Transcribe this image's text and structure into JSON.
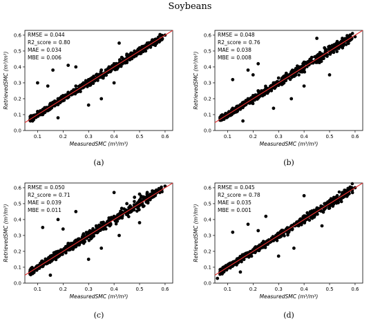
{
  "figure_title": "Soybeans",
  "chart_data": [
    {
      "type": "scatter",
      "panel_label": "(a)",
      "xlabel": "MeasuredSMC (m³/m³)",
      "ylabel": "RetrievedSMC (m³/m³)",
      "xlim": [
        0.05,
        0.63
      ],
      "ylim": [
        0.0,
        0.63
      ],
      "xticks": [
        "0.1",
        "0.2",
        "0.3",
        "0.4",
        "0.5",
        "0.6"
      ],
      "yticks": [
        "0.0",
        "0.1",
        "0.2",
        "0.3",
        "0.4",
        "0.5",
        "0.6"
      ],
      "stats": [
        "RMSE = 0.044",
        "R2_score = 0.80",
        "MAE = 0.034",
        "MBE = 0.006"
      ],
      "line": "1:1",
      "colors": {
        "points": "#000000",
        "line": "#e03030"
      },
      "sample_points": [
        [
          0.08,
          0.06
        ],
        [
          0.1,
          0.12
        ],
        [
          0.12,
          0.1
        ],
        [
          0.15,
          0.17
        ],
        [
          0.18,
          0.2
        ],
        [
          0.2,
          0.22
        ],
        [
          0.22,
          0.24
        ],
        [
          0.25,
          0.28
        ],
        [
          0.28,
          0.3
        ],
        [
          0.3,
          0.32
        ],
        [
          0.33,
          0.35
        ],
        [
          0.35,
          0.38
        ],
        [
          0.38,
          0.4
        ],
        [
          0.4,
          0.42
        ],
        [
          0.43,
          0.46
        ],
        [
          0.45,
          0.48
        ],
        [
          0.48,
          0.5
        ],
        [
          0.5,
          0.52
        ],
        [
          0.53,
          0.55
        ],
        [
          0.55,
          0.57
        ],
        [
          0.58,
          0.6
        ],
        [
          0.6,
          0.6
        ],
        [
          0.1,
          0.3
        ],
        [
          0.16,
          0.38
        ],
        [
          0.22,
          0.41
        ],
        [
          0.25,
          0.4
        ],
        [
          0.3,
          0.16
        ],
        [
          0.35,
          0.2
        ],
        [
          0.4,
          0.3
        ],
        [
          0.42,
          0.55
        ],
        [
          0.18,
          0.08
        ],
        [
          0.14,
          0.28
        ]
      ],
      "grid": false
    },
    {
      "type": "scatter",
      "panel_label": "(b)",
      "xlabel": "MeasuredSMC (m³/m³)",
      "ylabel": "RetrievedSMC (m³/m³)",
      "xlim": [
        0.05,
        0.63
      ],
      "ylim": [
        0.0,
        0.63
      ],
      "xticks": [
        "0.1",
        "0.2",
        "0.3",
        "0.4",
        "0.5",
        "0.6"
      ],
      "yticks": [
        "0.0",
        "0.1",
        "0.2",
        "0.3",
        "0.4",
        "0.5",
        "0.6"
      ],
      "stats": [
        "RMSE = 0.048",
        "R2_score = 0.76",
        "MAE = 0.038",
        "MBE = 0.008"
      ],
      "line": "1:1",
      "colors": {
        "points": "#000000",
        "line": "#e03030"
      },
      "sample_points": [
        [
          0.08,
          0.07
        ],
        [
          0.1,
          0.1
        ],
        [
          0.12,
          0.14
        ],
        [
          0.15,
          0.16
        ],
        [
          0.18,
          0.2
        ],
        [
          0.2,
          0.22
        ],
        [
          0.22,
          0.25
        ],
        [
          0.25,
          0.27
        ],
        [
          0.28,
          0.3
        ],
        [
          0.3,
          0.33
        ],
        [
          0.33,
          0.36
        ],
        [
          0.35,
          0.37
        ],
        [
          0.38,
          0.4
        ],
        [
          0.4,
          0.43
        ],
        [
          0.43,
          0.46
        ],
        [
          0.45,
          0.47
        ],
        [
          0.48,
          0.52
        ],
        [
          0.5,
          0.53
        ],
        [
          0.53,
          0.56
        ],
        [
          0.55,
          0.58
        ],
        [
          0.58,
          0.6
        ],
        [
          0.6,
          0.59
        ],
        [
          0.12,
          0.32
        ],
        [
          0.18,
          0.38
        ],
        [
          0.22,
          0.42
        ],
        [
          0.28,
          0.14
        ],
        [
          0.35,
          0.2
        ],
        [
          0.4,
          0.28
        ],
        [
          0.45,
          0.58
        ],
        [
          0.16,
          0.06
        ],
        [
          0.2,
          0.35
        ],
        [
          0.5,
          0.35
        ]
      ],
      "grid": false
    },
    {
      "type": "scatter",
      "panel_label": "(c)",
      "xlabel": "MeasuredSMC (m³/m³)",
      "ylabel": "RetrievedSMC (m³/m³)",
      "xlim": [
        0.05,
        0.63
      ],
      "ylim": [
        0.0,
        0.63
      ],
      "xticks": [
        "0.1",
        "0.2",
        "0.3",
        "0.4",
        "0.5",
        "0.6"
      ],
      "yticks": [
        "0.0",
        "0.1",
        "0.2",
        "0.3",
        "0.4",
        "0.5",
        "0.6"
      ],
      "stats": [
        "RMSE = 0.050",
        "R2_score = 0.71",
        "MAE = 0.039",
        "MBE = 0.011"
      ],
      "line": "1:1",
      "colors": {
        "points": "#000000",
        "line": "#e03030"
      },
      "sample_points": [
        [
          0.08,
          0.06
        ],
        [
          0.1,
          0.1
        ],
        [
          0.12,
          0.13
        ],
        [
          0.15,
          0.17
        ],
        [
          0.18,
          0.2
        ],
        [
          0.2,
          0.21
        ],
        [
          0.22,
          0.25
        ],
        [
          0.25,
          0.27
        ],
        [
          0.28,
          0.31
        ],
        [
          0.3,
          0.32
        ],
        [
          0.33,
          0.36
        ],
        [
          0.35,
          0.38
        ],
        [
          0.38,
          0.41
        ],
        [
          0.4,
          0.42
        ],
        [
          0.43,
          0.47
        ],
        [
          0.45,
          0.5
        ],
        [
          0.48,
          0.54
        ],
        [
          0.5,
          0.56
        ],
        [
          0.53,
          0.57
        ],
        [
          0.55,
          0.58
        ],
        [
          0.58,
          0.59
        ],
        [
          0.6,
          0.61
        ],
        [
          0.12,
          0.35
        ],
        [
          0.18,
          0.4
        ],
        [
          0.25,
          0.45
        ],
        [
          0.3,
          0.15
        ],
        [
          0.35,
          0.22
        ],
        [
          0.42,
          0.3
        ],
        [
          0.4,
          0.57
        ],
        [
          0.15,
          0.05
        ],
        [
          0.2,
          0.34
        ],
        [
          0.5,
          0.38
        ]
      ],
      "grid": false
    },
    {
      "type": "scatter",
      "panel_label": "(d)",
      "xlabel": "MeasuredSMC (m³/m³)",
      "ylabel": "RetrievedSMC (m³/m³)",
      "xlim": [
        0.05,
        0.63
      ],
      "ylim": [
        0.0,
        0.63
      ],
      "xticks": [
        "0.1",
        "0.2",
        "0.3",
        "0.4",
        "0.5",
        "0.6"
      ],
      "yticks": [
        "0.0",
        "0.1",
        "0.2",
        "0.3",
        "0.4",
        "0.5",
        "0.6"
      ],
      "stats": [
        "RMSE = 0.045",
        "R2_score = 0.78",
        "MAE = 0.035",
        "MBE = 0.001"
      ],
      "line": "1:1",
      "colors": {
        "points": "#000000",
        "line": "#e03030"
      },
      "sample_points": [
        [
          0.06,
          0.03
        ],
        [
          0.08,
          0.08
        ],
        [
          0.1,
          0.1
        ],
        [
          0.12,
          0.13
        ],
        [
          0.15,
          0.16
        ],
        [
          0.18,
          0.19
        ],
        [
          0.2,
          0.21
        ],
        [
          0.22,
          0.23
        ],
        [
          0.25,
          0.26
        ],
        [
          0.28,
          0.29
        ],
        [
          0.3,
          0.31
        ],
        [
          0.33,
          0.34
        ],
        [
          0.35,
          0.36
        ],
        [
          0.38,
          0.39
        ],
        [
          0.4,
          0.41
        ],
        [
          0.43,
          0.44
        ],
        [
          0.45,
          0.46
        ],
        [
          0.48,
          0.5
        ],
        [
          0.5,
          0.51
        ],
        [
          0.53,
          0.55
        ],
        [
          0.55,
          0.57
        ],
        [
          0.58,
          0.59
        ],
        [
          0.6,
          0.6
        ],
        [
          0.12,
          0.32
        ],
        [
          0.18,
          0.37
        ],
        [
          0.25,
          0.42
        ],
        [
          0.3,
          0.17
        ],
        [
          0.36,
          0.22
        ],
        [
          0.4,
          0.55
        ],
        [
          0.15,
          0.07
        ],
        [
          0.22,
          0.33
        ],
        [
          0.47,
          0.36
        ]
      ],
      "grid": false
    }
  ]
}
